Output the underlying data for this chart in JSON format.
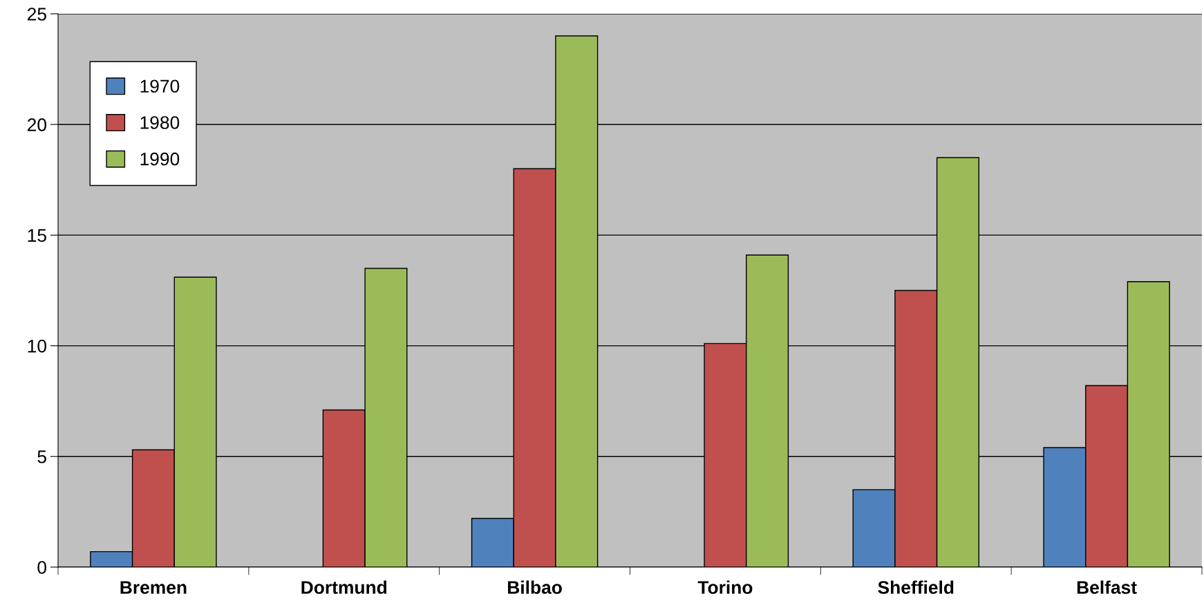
{
  "chart_data": {
    "type": "bar",
    "categories": [
      "Bremen",
      "Dortmund",
      "Bilbao",
      "Torino",
      "Sheffield",
      "Belfast"
    ],
    "series": [
      {
        "name": "1970",
        "color": "#4f81bd",
        "values": [
          0.7,
          null,
          2.2,
          null,
          3.5,
          5.4
        ]
      },
      {
        "name": "1980",
        "color": "#c0504d",
        "values": [
          5.3,
          7.1,
          18.0,
          10.1,
          12.5,
          8.2
        ]
      },
      {
        "name": "1990",
        "color": "#9bbb59",
        "values": [
          13.1,
          13.5,
          24.0,
          14.1,
          18.5,
          12.9
        ]
      }
    ],
    "ylim": [
      0,
      25
    ],
    "yticks": [
      0,
      5,
      10,
      15,
      20,
      25
    ],
    "grid": "y",
    "legend": "top left"
  }
}
